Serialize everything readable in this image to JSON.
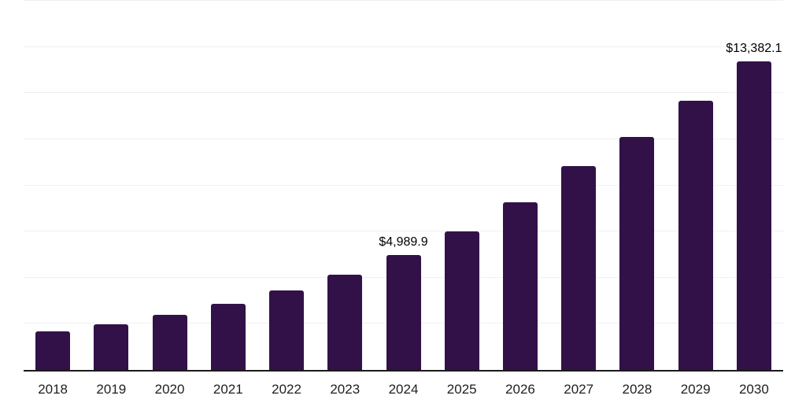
{
  "chart_data": {
    "type": "bar",
    "title": "",
    "xlabel": "",
    "ylabel": "",
    "categories": [
      "2018",
      "2019",
      "2020",
      "2021",
      "2022",
      "2023",
      "2024",
      "2025",
      "2026",
      "2027",
      "2028",
      "2029",
      "2030"
    ],
    "values": [
      1680,
      1990,
      2390,
      2880,
      3440,
      4120,
      4989.9,
      6020,
      7270,
      8840,
      10100,
      11680,
      13382.1
    ],
    "data_labels": [
      "",
      "",
      "",
      "",
      "",
      "",
      "$4,989.9",
      "",
      "",
      "",
      "",
      "",
      "$13,382.1"
    ],
    "ylim": [
      0,
      16000
    ],
    "gridline_step": 2000,
    "grid": "horizontal-only",
    "legend": "none",
    "colors": {
      "bar": "#321148",
      "gridline": "#f0f0f0",
      "axis_line": "#1a1a1a",
      "data_label_text": "#000000",
      "tick_label_text": "#212121",
      "background": "#ffffff"
    }
  }
}
